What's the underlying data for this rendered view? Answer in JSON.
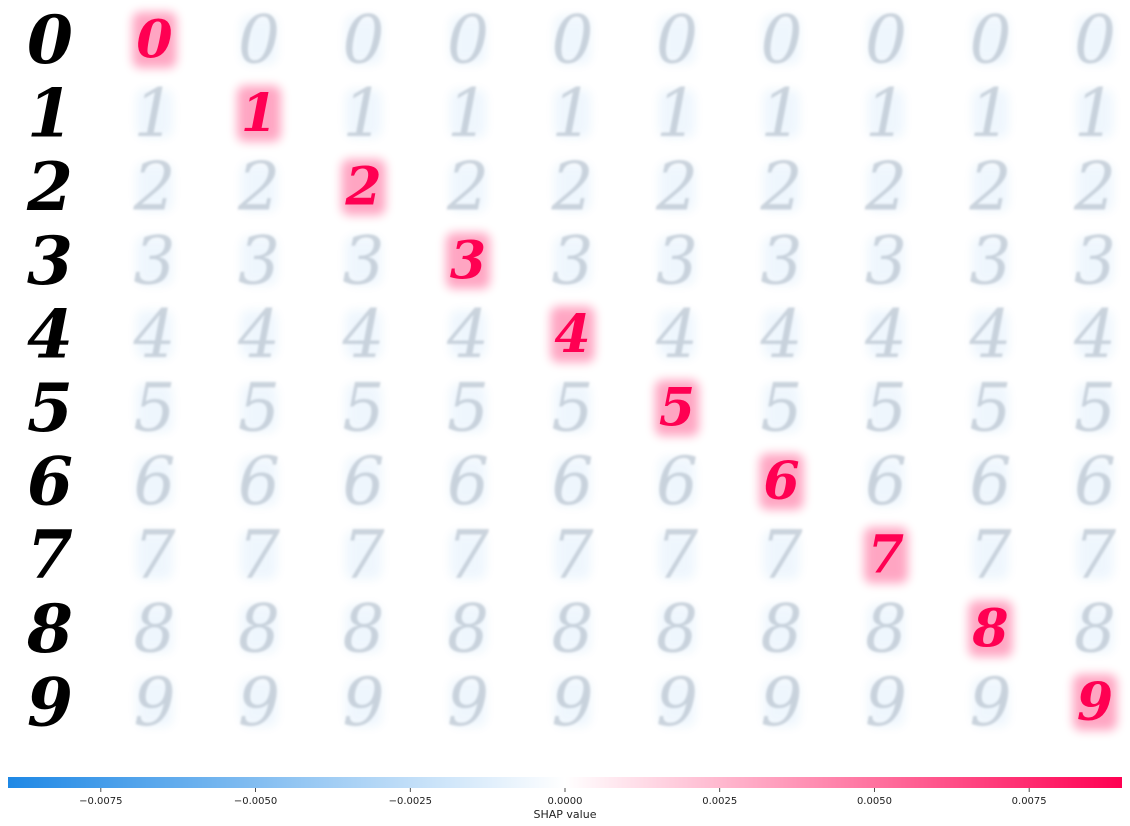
{
  "chart_data": {
    "type": "heatmap",
    "title": "",
    "rows": [
      "0",
      "1",
      "2",
      "3",
      "4",
      "5",
      "6",
      "7",
      "8",
      "9"
    ],
    "columns": [
      "0",
      "1",
      "2",
      "3",
      "4",
      "5",
      "6",
      "7",
      "8",
      "9"
    ],
    "row_digits": [
      "0",
      "1",
      "2",
      "3",
      "4",
      "5",
      "6",
      "7",
      "8",
      "9"
    ],
    "diagonal_shap_peak": 0.009,
    "off_diagonal_shap_range": [
      -0.003,
      0.0005
    ],
    "colorbar": {
      "label": "SHAP value",
      "range": [
        -0.009,
        0.009
      ],
      "ticks": [
        -0.0075,
        -0.005,
        -0.0025,
        0.0,
        0.0025,
        0.005,
        0.0075
      ],
      "tick_labels": [
        "−0.0075",
        "−0.0050",
        "−0.0025",
        "0.0000",
        "0.0025",
        "0.0050",
        "0.0075"
      ],
      "low_color": "#1e88e5",
      "mid_color": "#ffffff",
      "high_color": "#ff0052"
    },
    "digit_colors": {
      "input": "#000000",
      "overlay_gray": "#b8c3cf",
      "negative": "#1e88e5",
      "positive": "#ff0052"
    },
    "grid": false,
    "legend": "none"
  }
}
